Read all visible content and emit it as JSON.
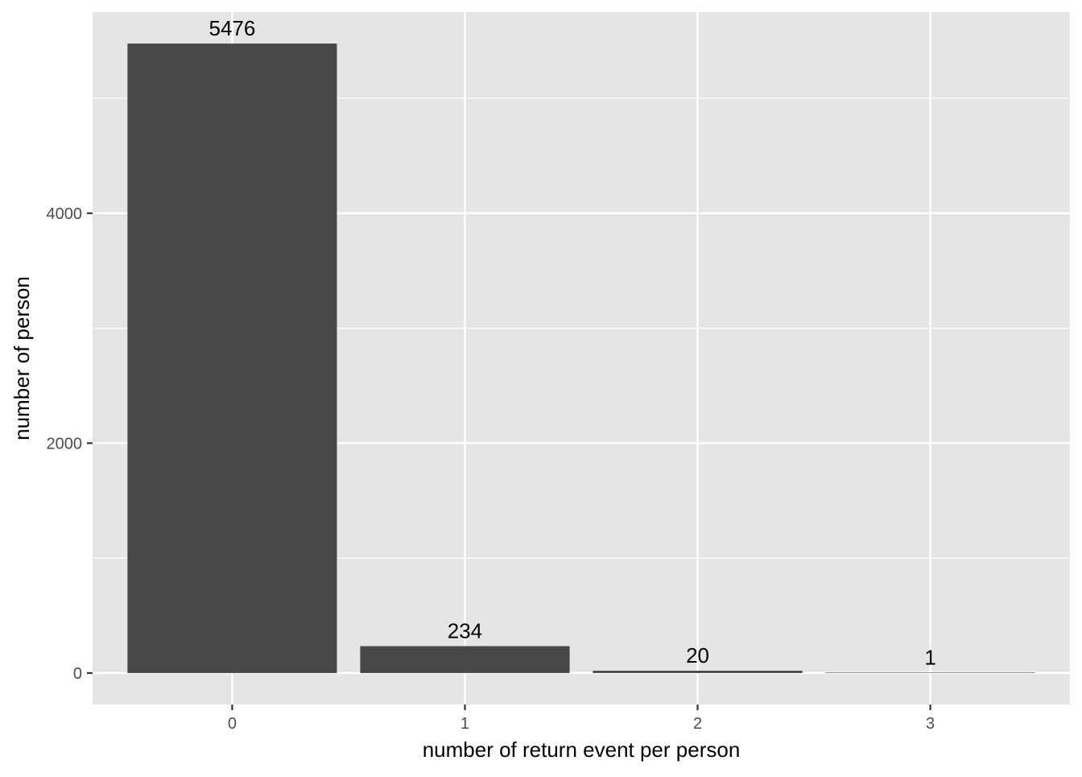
{
  "chart_data": {
    "type": "bar",
    "categories": [
      "0",
      "1",
      "2",
      "3"
    ],
    "values": [
      5476,
      234,
      20,
      1
    ],
    "data_labels": [
      "5476",
      "234",
      "20",
      "1"
    ],
    "title": "",
    "xlabel": "number of return event per person",
    "ylabel": "number of person",
    "ylim": [
      -274,
      5750
    ],
    "y_ticks": [
      0,
      2000,
      4000
    ],
    "y_tick_labels": [
      "0",
      "2000",
      "4000"
    ],
    "y_minor_ticks": [
      1000,
      3000,
      5000
    ],
    "grid": true,
    "legend": "none",
    "colors": {
      "panel_background": "#e5e5e5",
      "grid": "#ffffff",
      "bar": "#474747",
      "tick": "#333333"
    }
  }
}
